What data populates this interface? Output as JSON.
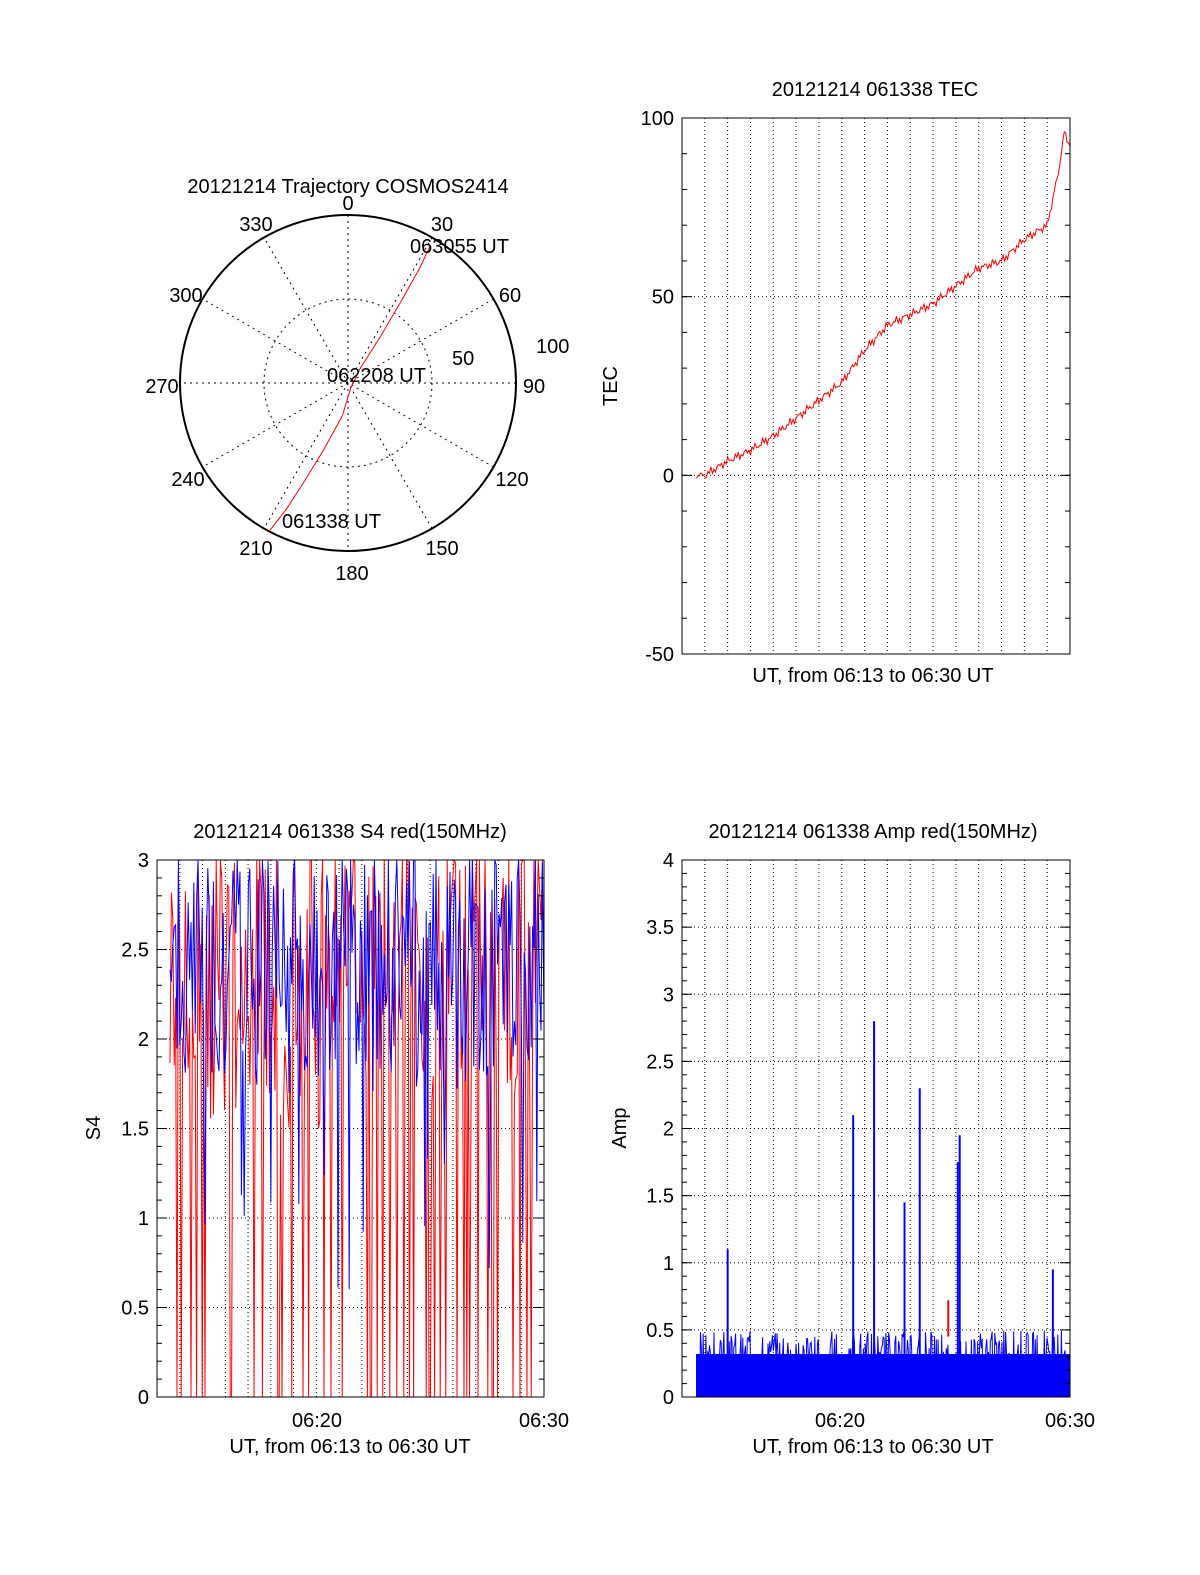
{
  "colors": {
    "red": "#ff0000",
    "blue": "#0000ff",
    "axis": "#000000",
    "grid": "#000000"
  },
  "chart_data": [
    {
      "type": "polar",
      "title": "20121214 Trajectory COSMOS2414",
      "azimuth_labels": [
        "0",
        "30",
        "60",
        "90",
        "120",
        "150",
        "180",
        "210",
        "240",
        "270",
        "300",
        "330"
      ],
      "radial_labels": [
        "50",
        "100"
      ],
      "grid": true,
      "series": [
        {
          "color": "red",
          "points": [
            {
              "az": 208,
              "zd": 90
            },
            {
              "az": 206,
              "zd": 75
            },
            {
              "az": 204,
              "zd": 58
            },
            {
              "az": 200,
              "zd": 38
            },
            {
              "az": 190,
              "zd": 18
            },
            {
              "az": 150,
              "zd": 3
            },
            {
              "az": 40,
              "zd": 10
            },
            {
              "az": 35,
              "zd": 30
            },
            {
              "az": 33,
              "zd": 52
            },
            {
              "az": 32,
              "zd": 72
            },
            {
              "az": 31,
              "zd": 85
            }
          ]
        }
      ],
      "annotations": [
        "063055 UT",
        "062208 UT",
        "061338 UT"
      ]
    },
    {
      "type": "line",
      "title": "20121214 061338 TEC",
      "xlabel": "UT, from 06:13 to 06:30 UT",
      "ylabel": "TEC",
      "xlim": [
        "06:13",
        "06:30"
      ],
      "ylim": [
        -50,
        100
      ],
      "yticks": [
        "-50",
        "0",
        "50",
        "100"
      ],
      "grid": true,
      "series": [
        {
          "color": "red",
          "x": [
            "06:13:38",
            "06:14:00",
            "06:15:00",
            "06:16:00",
            "06:17:00",
            "06:18:00",
            "06:19:00",
            "06:20:00",
            "06:21:00",
            "06:22:00",
            "06:23:00",
            "06:24:00",
            "06:25:00",
            "06:26:00",
            "06:27:00",
            "06:28:00",
            "06:29:00",
            "06:29:30",
            "06:29:45",
            "06:30:00"
          ],
          "y": [
            0,
            0,
            4,
            7,
            11,
            16,
            21,
            26,
            35,
            42,
            45,
            48,
            53,
            58,
            60,
            66,
            70,
            85,
            96,
            92
          ]
        }
      ]
    },
    {
      "type": "line",
      "title": "20121214 061338 S4 red(150MHz)",
      "xlabel": "UT, from 06:13 to 06:30 UT",
      "ylabel": "S4",
      "xlim": [
        "06:13",
        "06:30"
      ],
      "ylim": [
        0,
        3
      ],
      "yticks": [
        "0",
        "0.5",
        "1",
        "1.5",
        "2",
        "2.5",
        "3"
      ],
      "xticks": [
        "06:20",
        "06:30"
      ],
      "grid": true,
      "series": [
        {
          "color": "blue",
          "description_range": [
            0.5,
            3
          ]
        },
        {
          "color": "red",
          "description_range": [
            0,
            3
          ]
        }
      ]
    },
    {
      "type": "line",
      "title": "20121214 061338 Amp red(150MHz)",
      "xlabel": "UT, from 06:13 to 06:30 UT",
      "ylabel": "Amp",
      "xlim": [
        "06:13",
        "06:30"
      ],
      "ylim": [
        0,
        4
      ],
      "yticks": [
        "0",
        "0.5",
        "1",
        "1.5",
        "2",
        "2.5",
        "3",
        "3.5",
        "4"
      ],
      "xticks": [
        "06:20",
        "06:30"
      ],
      "grid": true,
      "series": [
        {
          "color": "blue",
          "baseline": 0.45,
          "peaks": [
            {
              "x": "06:15:00",
              "y": 1.1
            },
            {
              "x": "06:20:30",
              "y": 2.1
            },
            {
              "x": "06:21:25",
              "y": 2.8
            },
            {
              "x": "06:22:45",
              "y": 1.45
            },
            {
              "x": "06:23:25",
              "y": 2.3
            },
            {
              "x": "06:25:10",
              "y": 1.95
            },
            {
              "x": "06:25:05",
              "y": 1.75
            },
            {
              "x": "06:29:15",
              "y": 0.95
            }
          ]
        }
      ]
    }
  ]
}
